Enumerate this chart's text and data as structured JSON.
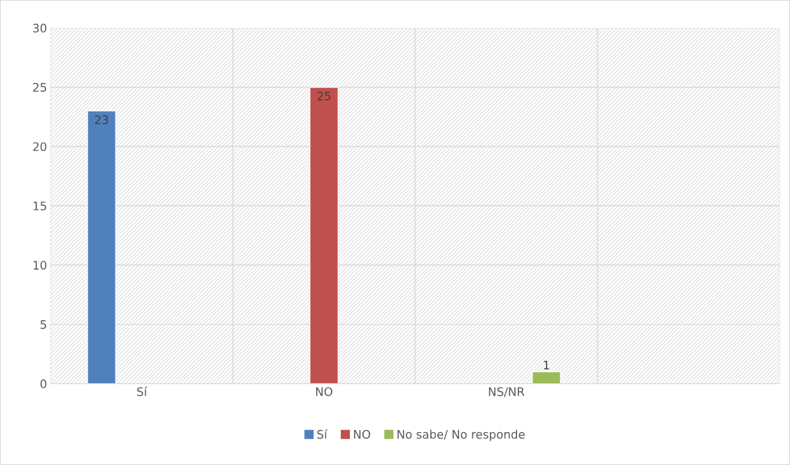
{
  "chart_data": {
    "type": "bar",
    "categories": [
      "Sí",
      "NO",
      "NS/NR",
      null
    ],
    "series": [
      {
        "name": "Sí",
        "color": "#4f81bd",
        "values": [
          23,
          null,
          null,
          null
        ]
      },
      {
        "name": "NO",
        "color": "#c0504d",
        "values": [
          null,
          25,
          null,
          null
        ]
      },
      {
        "name": "No sabe/ No responde",
        "color": "#9bbb59",
        "values": [
          null,
          null,
          1,
          null
        ]
      }
    ],
    "ylim": [
      0,
      30
    ],
    "yticks": [
      0,
      5,
      10,
      15,
      20,
      25,
      30
    ],
    "grid": true,
    "legend": "bottom",
    "data_labels": true
  }
}
